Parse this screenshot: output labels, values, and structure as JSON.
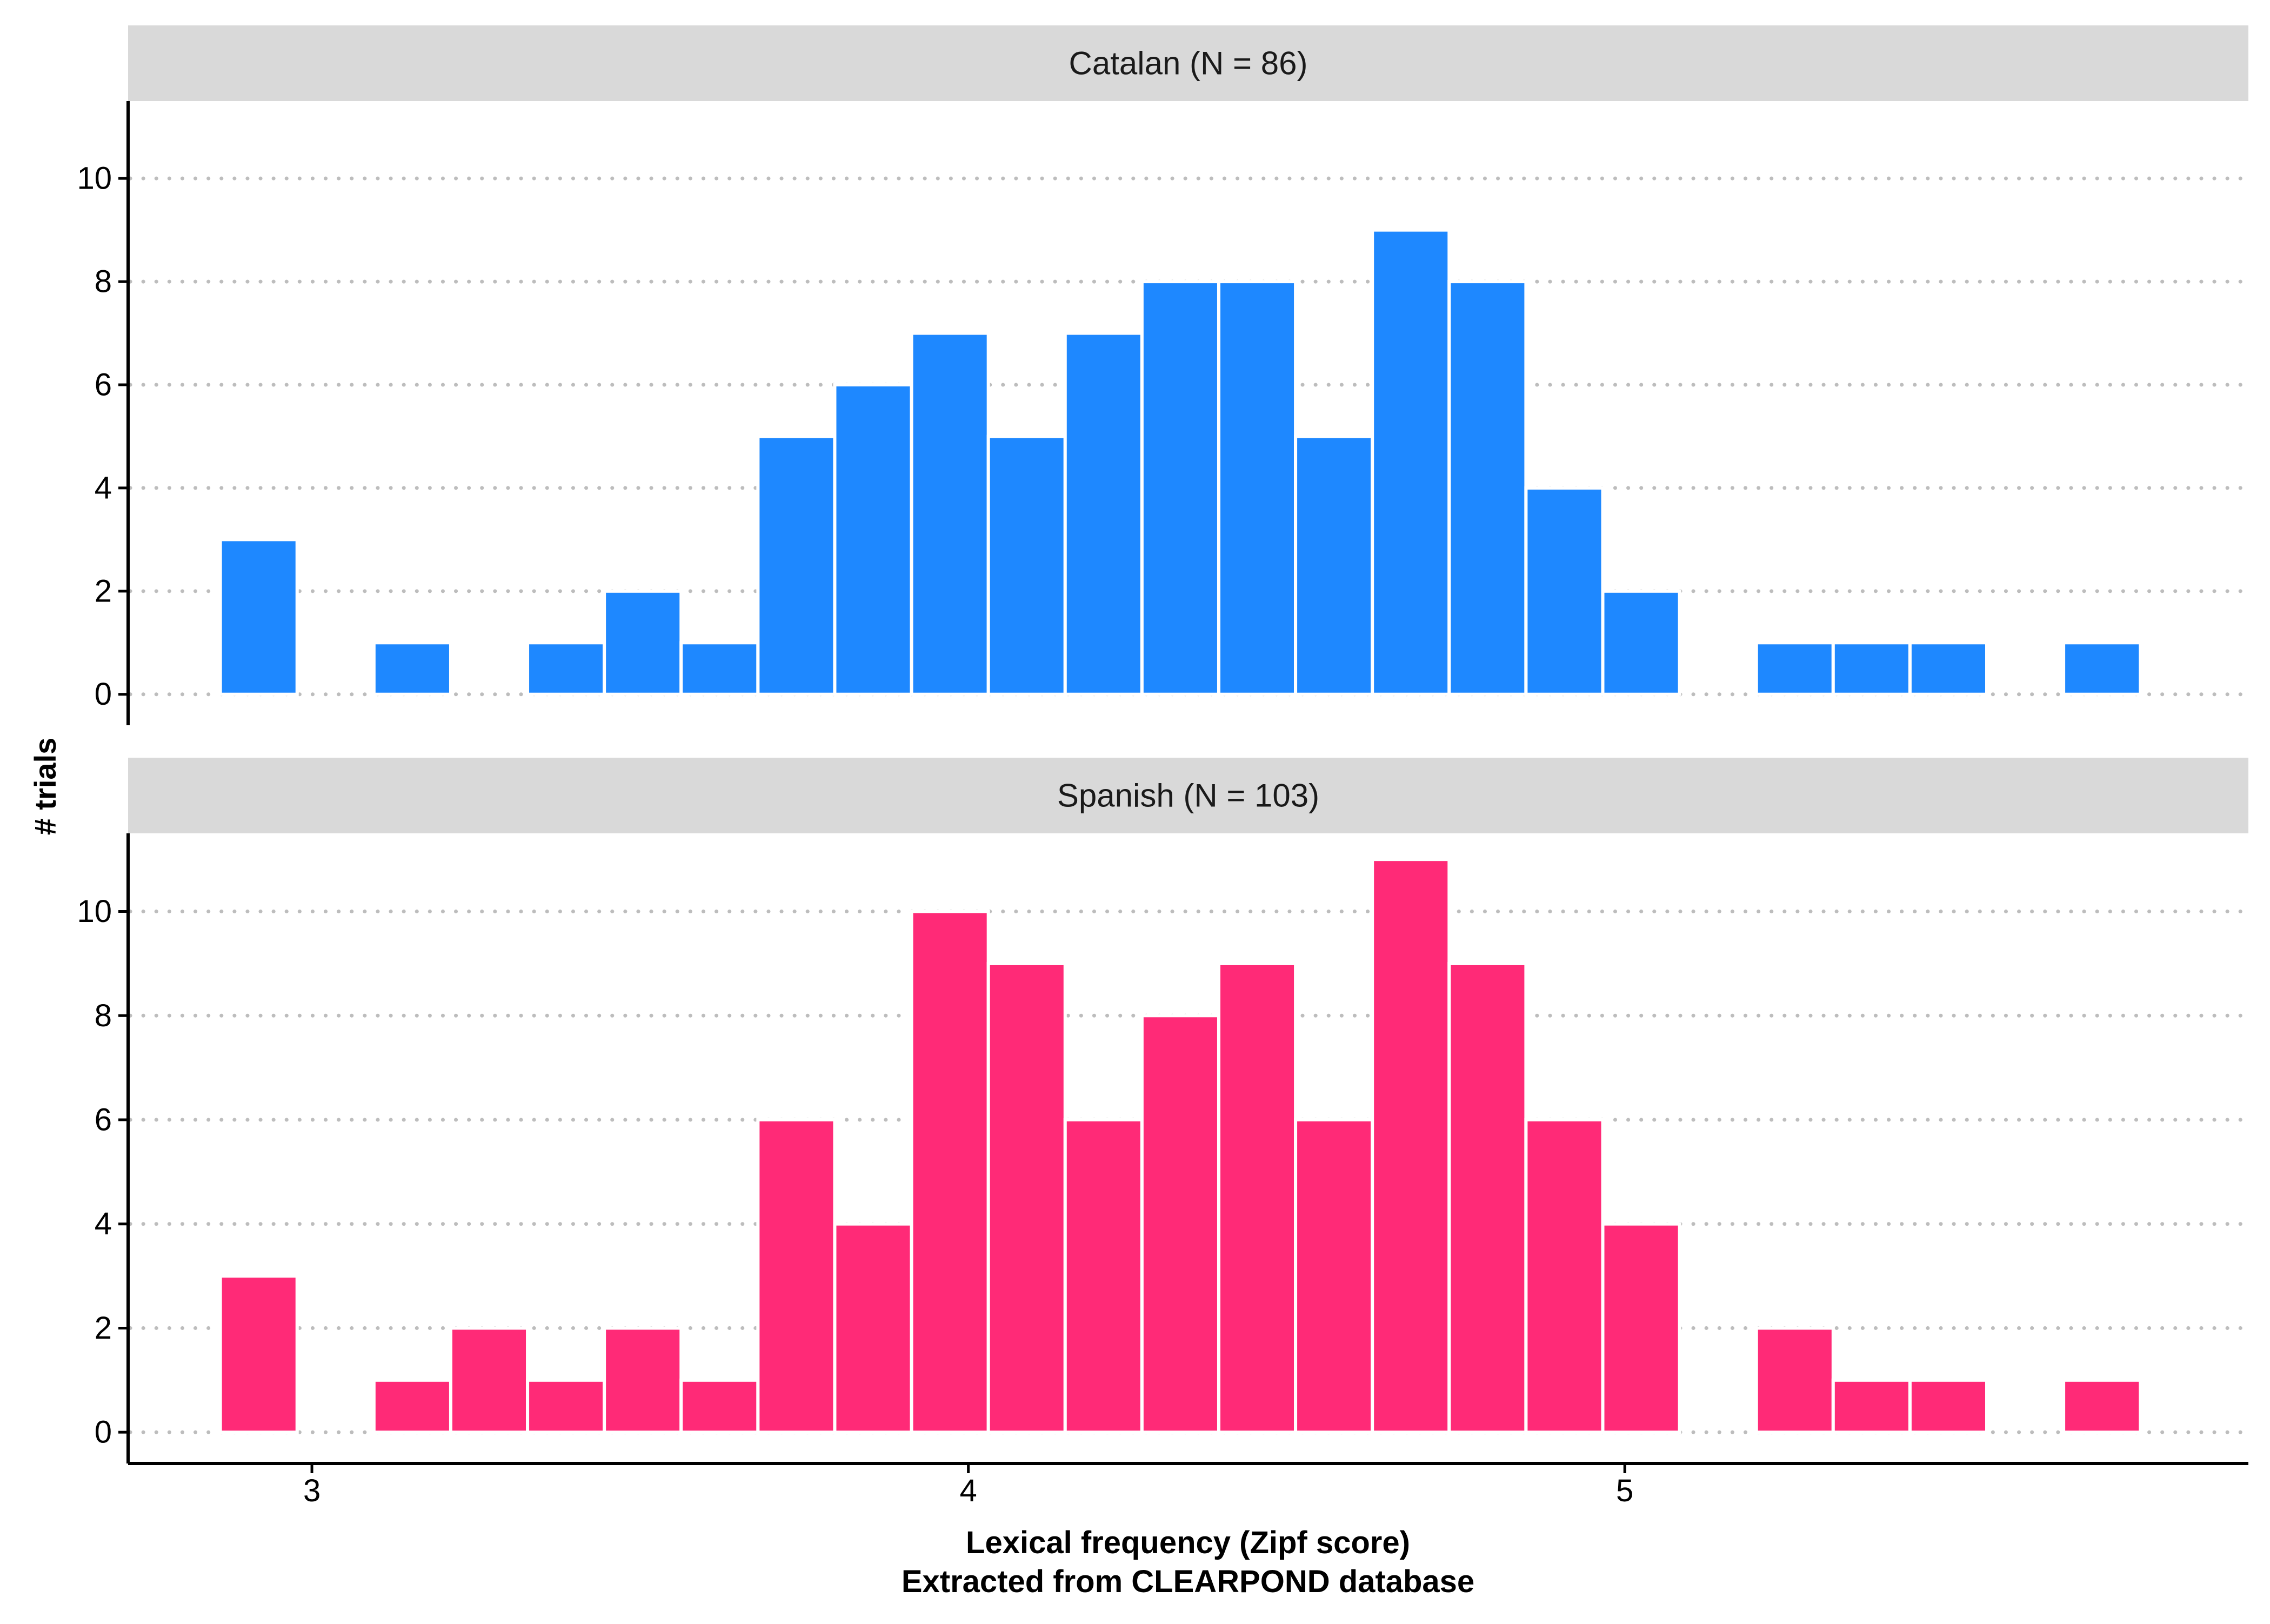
{
  "chart_data": {
    "type": "bar",
    "xlabel": "Lexical frequency (Zipf score)",
    "xlabel_line2": "Extracted from CLEARPOND database",
    "ylabel": "# trials",
    "xlim": [
      2.72,
      5.95
    ],
    "ylim": [
      -0.6,
      11.5
    ],
    "x_ticks": [
      3,
      4,
      5
    ],
    "y_ticks": [
      0,
      2,
      4,
      6,
      8,
      10
    ],
    "grid": "horizontal-dotted",
    "bin_edges": [
      2.8605,
      2.9775,
      3.0945,
      3.2115,
      3.3285,
      3.4455,
      3.5625,
      3.6795,
      3.7965,
      3.9135,
      4.0305,
      4.1475,
      4.2645,
      4.3815,
      4.4985,
      4.6155,
      4.7325,
      4.8495,
      4.9665,
      5.0835,
      5.2005,
      5.3175,
      5.4345,
      5.5515,
      5.6685,
      5.7855
    ],
    "panels": [
      {
        "strip": "Catalan (N = 86)",
        "color": "#1E88FF",
        "counts": [
          3,
          0,
          1,
          0,
          1,
          2,
          1,
          5,
          6,
          7,
          5,
          7,
          8,
          8,
          5,
          9,
          8,
          4,
          2,
          0,
          1,
          1,
          1,
          0,
          1
        ]
      },
      {
        "strip": "Spanish (N = 103)",
        "color": "#FF2A77",
        "counts": [
          3,
          0,
          1,
          2,
          1,
          2,
          1,
          6,
          4,
          10,
          9,
          6,
          8,
          9,
          6,
          11,
          9,
          6,
          4,
          0,
          2,
          1,
          1,
          0,
          1
        ]
      }
    ]
  },
  "colors": {
    "strip_bg": "#D9D9D9",
    "grid": "#BDBDBD",
    "axis": "#000000"
  }
}
